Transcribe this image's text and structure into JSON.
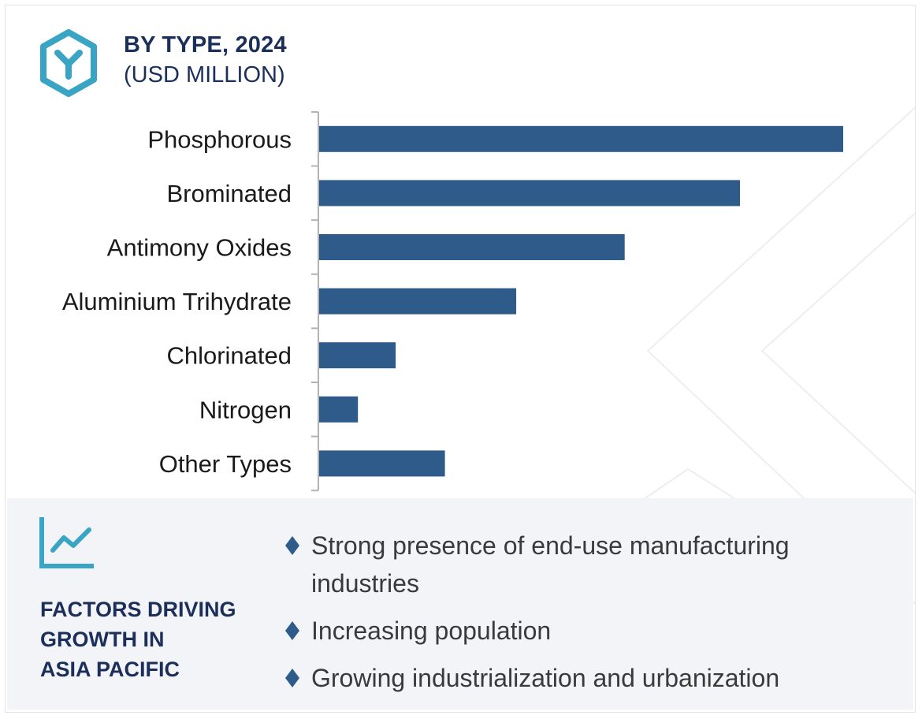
{
  "header": {
    "title": "BY TYPE, 2024",
    "subtitle": "(USD MILLION)",
    "icon": "hexagon-y-icon"
  },
  "chart_data": {
    "type": "bar",
    "orientation": "horizontal",
    "categories": [
      "Phosphorous",
      "Brominated",
      "Antimony Oxides",
      "Aluminium Trihydrate",
      "Chlorinated",
      "Nitrogen",
      "Other Types"
    ],
    "values": [
      100,
      80.3,
      58.3,
      37.6,
      14.6,
      7.4,
      24.0
    ],
    "xlim": [
      0,
      100
    ],
    "value_axis_labels": "none",
    "grid": false,
    "legend": "none",
    "bar_color": "#2e5b8a",
    "title": "BY TYPE, 2024",
    "xlabel": "",
    "ylabel": ""
  },
  "factors": {
    "icon": "line-chart-icon",
    "title_lines": [
      "FACTORS DRIVING",
      "GROWTH IN",
      "ASIA PACIFIC"
    ],
    "bullets": [
      "Strong presence of end-use manufacturing industries",
      "Increasing population",
      "Growing industrialization and urbanization"
    ]
  },
  "colors": {
    "accent": "#3aa4c4",
    "heading": "#1c2f5a",
    "bar": "#2e5b8a",
    "panel_bg": "#f3f4f8",
    "bullet_marker": "#2e5b8a"
  }
}
